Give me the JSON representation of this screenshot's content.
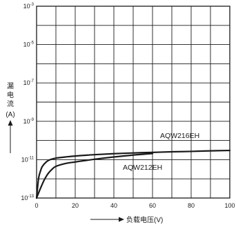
{
  "chart_data": {
    "type": "line",
    "xlabel": "负载电压(V)",
    "ylabel_chars": [
      "漏",
      "电",
      "流"
    ],
    "ylabel_unit": "(A)",
    "x_range": [
      0,
      100
    ],
    "x_ticks": [
      0,
      20,
      40,
      60,
      80,
      100
    ],
    "y_scale": "log",
    "y_range_exp": [
      -13,
      -3
    ],
    "y_tick_base": "10",
    "y_tick_exponents": [
      -13,
      -11,
      -9,
      -7,
      -5,
      -3
    ],
    "y_tick_exponent_labels": [
      "-13",
      "-11",
      "-9",
      "-7",
      "-5",
      "-3"
    ],
    "grid": true,
    "series": [
      {
        "name": "AQW216EH",
        "x": [
          0,
          1,
          2,
          3,
          5,
          7,
          10,
          15,
          20,
          30,
          40,
          50,
          60,
          70,
          80,
          90,
          100
        ],
        "y_exp": [
          -13,
          -12.0,
          -11.6,
          -11.35,
          -11.12,
          -11.0,
          -10.92,
          -10.86,
          -10.81,
          -10.74,
          -10.69,
          -10.65,
          -10.62,
          -10.59,
          -10.57,
          -10.54,
          -10.52
        ]
      },
      {
        "name": "AQW212EH",
        "x": [
          0,
          2,
          4,
          6,
          8,
          10,
          15,
          20,
          30,
          40,
          50,
          60
        ],
        "y_exp": [
          -13,
          -12.5,
          -12.05,
          -11.72,
          -11.5,
          -11.35,
          -11.2,
          -11.12,
          -10.98,
          -10.86,
          -10.76,
          -10.68
        ]
      }
    ]
  }
}
